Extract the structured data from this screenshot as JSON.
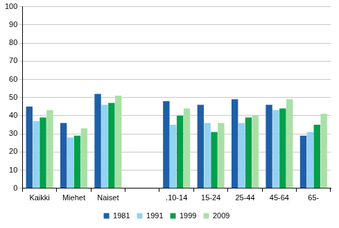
{
  "chart_data": {
    "type": "bar",
    "categories": [
      "Kaikki",
      "Miehet",
      "Naiset",
      null,
      ".10-14",
      "15-24",
      "25-44",
      "45-64",
      "65-"
    ],
    "series": [
      {
        "name": "1981",
        "color": "#1f5fa8",
        "values": [
          45,
          36,
          52,
          null,
          48,
          46,
          49,
          46,
          29
        ]
      },
      {
        "name": "1991",
        "color": "#92d2f2",
        "values": [
          37,
          28,
          46,
          null,
          35,
          36,
          36,
          43,
          31
        ]
      },
      {
        "name": "1999",
        "color": "#00a04c",
        "values": [
          39,
          29,
          47,
          null,
          40,
          31,
          39,
          44,
          35
        ]
      },
      {
        "name": "2009",
        "color": "#a9e0a6",
        "values": [
          43,
          33,
          51,
          null,
          44,
          36,
          40,
          49,
          41
        ]
      }
    ],
    "ylim": [
      0,
      100
    ],
    "yticks": [
      0,
      10,
      20,
      30,
      40,
      50,
      60,
      70,
      80,
      90,
      100
    ],
    "grid": true,
    "legend": "bottom"
  }
}
